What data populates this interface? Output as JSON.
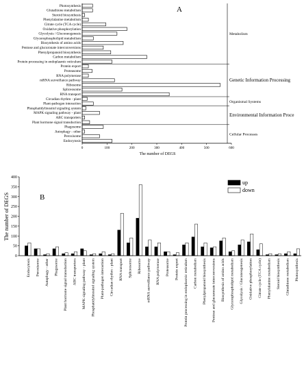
{
  "chart_data": [
    {
      "panel_label": "A",
      "type": "bar",
      "orientation": "horizontal",
      "xlabel": "The number of DEGS",
      "xlim": [
        0,
        600
      ],
      "xticks": [
        0,
        100,
        200,
        300,
        400,
        500,
        600
      ],
      "categories": [
        "Photosynthesis",
        "Glutathione metabolism",
        "Steroid biosynthesis",
        "Phenylalanine metabolism",
        "Citrate cycle (TCA cycle)",
        "Oxidative phosphorylation",
        "Glycolysis / Gluconeogenesis",
        "Glycerophospholipid metabolism",
        "Biosynthesis of amino acids",
        "Pentose and glucuronate interconversions",
        "Phenylpropanoid biosynthesis",
        "Carbon metabolism",
        "Protein processing in endoplasmic reticulum",
        "Protein export",
        "Proteasome",
        "RNA polymerase",
        "mRNA surveillance pathway",
        "Ribosome",
        "Spliceosome",
        "RNA transport",
        "Circadian rhythm - plant",
        "Plant-pathogen interaction",
        "Phosphatidylinositol signaling system",
        "MAPK signaling pathway - plant",
        "ABC transporters",
        "Plant hormone signal transduction",
        "Phagosome",
        "Autophagy - other",
        "Peroxisome",
        "Endocytosis"
      ],
      "values": [
        42,
        42,
        10,
        25,
        95,
        180,
        140,
        45,
        165,
        85,
        115,
        260,
        120,
        25,
        40,
        25,
        130,
        555,
        160,
        350,
        20,
        45,
        15,
        70,
        10,
        30,
        85,
        10,
        70,
        120
      ],
      "groups": [
        {
          "name": "Metabolism",
          "start": 0,
          "end": 12
        },
        {
          "name": "Genetic Information Processing",
          "start": 13,
          "end": 19
        },
        {
          "name": "Organismal Systems",
          "start": 20,
          "end": 21
        },
        {
          "name": "Environmental Information Proce",
          "start": 22,
          "end": 25
        },
        {
          "name": "Cellular Processes",
          "start": 26,
          "end": 29
        }
      ]
    },
    {
      "panel_label": "B",
      "type": "bar",
      "ylabel": "The number of DEGS",
      "ylim": [
        0,
        400
      ],
      "yticks": [
        0,
        50,
        100,
        150,
        200,
        250,
        300,
        350,
        400
      ],
      "legend_position": "top-right",
      "categories": [
        "Endocytosis",
        "Peroxisome",
        "Autophagy - other",
        "Phagosome",
        "Plant hormone signal transduction",
        "ABC transporters",
        "MAPK signaling pathway - plant",
        "Phosphatidylinositol signaling system",
        "Plant-pathogen interaction",
        "Circadian rhythm - plant",
        "RNA transport",
        "Spliceosome",
        "Ribosome",
        "mRNA surveillance pathway",
        "RNA polymerase",
        "Proteasome",
        "Protein export",
        "Protein processing in endoplasmic reticulum",
        "Carbon metabolism",
        "Phenylpropanoid biosynthesis",
        "Pentose and glucuronate interconversions",
        "Biosynthesis of amino acids",
        "Glycerophospholipid metabolism",
        "Glycolysis / Gluconeogenesis",
        "Oxidative phosphorylation",
        "Citrate cycle (TCA cycle)",
        "Phenylalanine metabolism",
        "Steroid biosynthesis",
        "Glutathione metabolism",
        "Photosynthesis"
      ],
      "series": [
        {
          "name": "up",
          "color": "#000000",
          "values": [
            50,
            35,
            5,
            35,
            10,
            10,
            35,
            5,
            10,
            5,
            130,
            65,
            190,
            45,
            45,
            20,
            5,
            55,
            95,
            45,
            40,
            75,
            20,
            55,
            70,
            30,
            5,
            5,
            10,
            10
          ]
        },
        {
          "name": "down",
          "color": "#ffffff",
          "values": [
            65,
            35,
            10,
            45,
            15,
            20,
            25,
            10,
            20,
            10,
            215,
            90,
            360,
            80,
            65,
            20,
            15,
            65,
            160,
            65,
            45,
            90,
            25,
            80,
            110,
            60,
            10,
            10,
            20,
            35
          ]
        }
      ]
    }
  ]
}
